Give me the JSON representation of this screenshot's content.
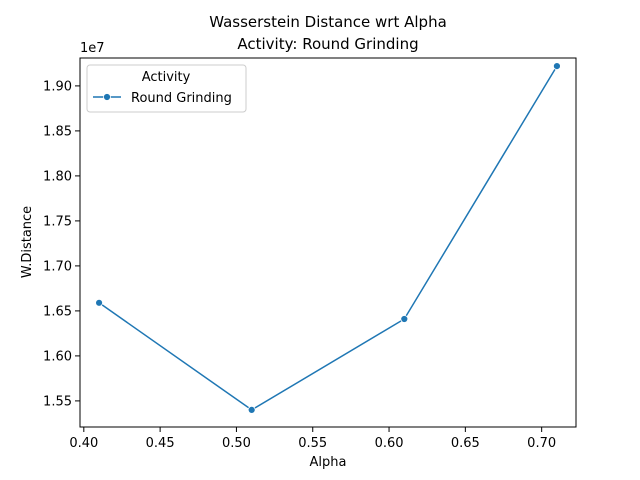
{
  "chart_data": {
    "type": "line",
    "title_line1": "Wasserstein Distance wrt Alpha",
    "title_line2": "Activity: Round Grinding",
    "xlabel": "Alpha",
    "ylabel": "W.Distance",
    "y_offset_label": "1e7",
    "xlim": [
      0.3975,
      0.7225
    ],
    "ylim": [
      15.21,
      19.31
    ],
    "x_ticks": [
      0.4,
      0.45,
      0.5,
      0.55,
      0.6,
      0.65,
      0.7
    ],
    "x_tick_labels": [
      "0.40",
      "0.45",
      "0.50",
      "0.55",
      "0.60",
      "0.65",
      "0.70"
    ],
    "y_ticks": [
      15.5,
      16.0,
      16.5,
      17.0,
      17.5,
      18.0,
      18.5,
      19.0
    ],
    "y_tick_labels": [
      "1.55",
      "1.60",
      "1.65",
      "1.70",
      "1.75",
      "1.80",
      "1.85",
      "1.90"
    ],
    "grid": false,
    "legend": {
      "title": "Activity",
      "placement": "top-left"
    },
    "series": [
      {
        "name": "Round Grinding",
        "color": "#1f77b4",
        "marker": "circle",
        "x": [
          0.41,
          0.51,
          0.61,
          0.71
        ],
        "y": [
          16.59,
          15.4,
          16.41,
          19.22
        ]
      }
    ]
  }
}
